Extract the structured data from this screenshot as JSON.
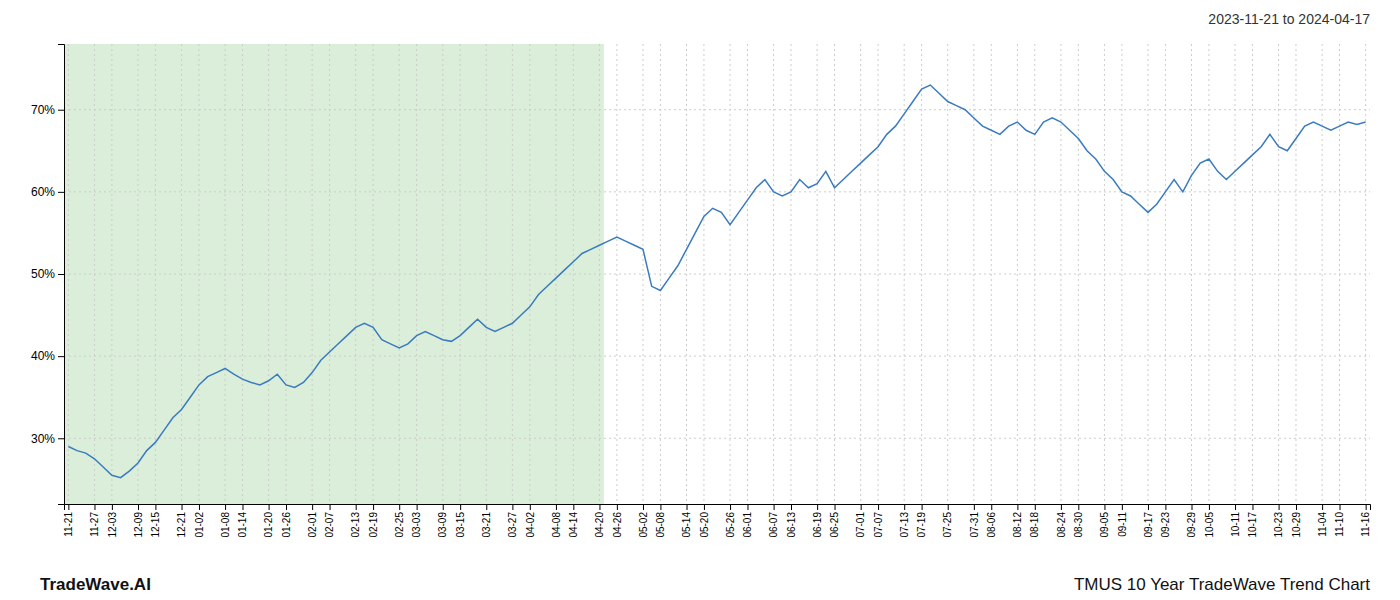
{
  "chart_data": {
    "type": "line",
    "title": "2023-11-21 to 2024-04-17",
    "annotations": [
      "TradeWave.AI",
      "TMUS 10 Year TradeWave Trend Chart"
    ],
    "color": "#3a7bbf",
    "grid": true,
    "highlight": {
      "start": "11-21",
      "end": "04-20",
      "color": "#daeeda"
    },
    "ylim": [
      22,
      78
    ],
    "yticks": [
      {
        "value": 30,
        "label": "30%"
      },
      {
        "value": 40,
        "label": "40%"
      },
      {
        "value": 50,
        "label": "50%"
      },
      {
        "value": 60,
        "label": "60%"
      },
      {
        "value": 70,
        "label": "70%"
      }
    ],
    "categories": [
      "11-21",
      null,
      null,
      "11-27",
      null,
      "12-03",
      null,
      null,
      "12-09",
      null,
      "12-15",
      null,
      null,
      "12-21",
      null,
      "01-02",
      null,
      null,
      "01-08",
      null,
      "01-14",
      null,
      null,
      "01-20",
      null,
      "01-26",
      null,
      null,
      "02-01",
      null,
      "02-07",
      null,
      null,
      "02-13",
      null,
      "02-19",
      null,
      null,
      "02-25",
      null,
      "03-03",
      null,
      null,
      "03-09",
      null,
      "03-15",
      null,
      null,
      "03-21",
      null,
      null,
      "03-27",
      null,
      "04-02",
      null,
      null,
      "04-08",
      null,
      "04-14",
      null,
      null,
      "04-20",
      null,
      "04-26",
      null,
      null,
      "05-02",
      null,
      "05-08",
      null,
      null,
      "05-14",
      null,
      "05-20",
      null,
      null,
      "05-26",
      null,
      "06-01",
      null,
      null,
      "06-07",
      null,
      "06-13",
      null,
      null,
      "06-19",
      null,
      "06-25",
      null,
      null,
      "07-01",
      null,
      "07-07",
      null,
      null,
      "07-13",
      null,
      "07-19",
      null,
      null,
      "07-25",
      null,
      null,
      "07-31",
      null,
      "08-06",
      null,
      null,
      "08-12",
      null,
      "08-18",
      null,
      null,
      "08-24",
      null,
      "08-30",
      null,
      null,
      "09-05",
      null,
      "09-11",
      null,
      null,
      "09-17",
      null,
      "09-23",
      null,
      null,
      "09-29",
      null,
      "10-05",
      null,
      null,
      "10-11",
      null,
      "10-17",
      null,
      null,
      "10-23",
      null,
      "10-29",
      null,
      null,
      "11-04",
      null,
      "11-10",
      null,
      null,
      "11-16"
    ],
    "values": [
      29.0,
      28.5,
      28.2,
      27.5,
      26.5,
      25.5,
      25.2,
      26.0,
      27.0,
      28.5,
      29.5,
      31.0,
      32.5,
      33.5,
      35.0,
      36.5,
      37.5,
      38.0,
      38.5,
      37.8,
      37.2,
      36.8,
      36.5,
      37.0,
      37.8,
      36.5,
      36.2,
      36.8,
      38.0,
      39.5,
      40.5,
      41.5,
      42.5,
      43.5,
      44.0,
      43.5,
      42.0,
      41.5,
      41.0,
      41.5,
      42.5,
      43.0,
      42.5,
      42.0,
      41.8,
      42.5,
      43.5,
      44.5,
      43.5,
      43.0,
      43.5,
      44.0,
      45.0,
      46.0,
      47.5,
      48.5,
      49.5,
      50.5,
      51.5,
      52.5,
      53.0,
      53.5,
      54.0,
      54.5,
      54.0,
      53.5,
      53.0,
      48.5,
      48.0,
      49.5,
      51.0,
      53.0,
      55.0,
      57.0,
      58.0,
      57.5,
      56.0,
      57.5,
      59.0,
      60.5,
      61.5,
      60.0,
      59.5,
      60.0,
      61.5,
      60.5,
      61.0,
      62.5,
      60.5,
      61.5,
      62.5,
      63.5,
      64.5,
      65.5,
      67.0,
      68.0,
      69.5,
      71.0,
      72.5,
      73.0,
      72.0,
      71.0,
      70.5,
      70.0,
      69.0,
      68.0,
      67.5,
      67.0,
      68.0,
      68.5,
      67.5,
      67.0,
      68.5,
      69.0,
      68.5,
      67.5,
      66.5,
      65.0,
      64.0,
      62.5,
      61.5,
      60.0,
      59.5,
      58.5,
      57.5,
      58.5,
      60.0,
      61.5,
      60.0,
      62.0,
      63.5,
      64.0,
      62.5,
      61.5,
      62.5,
      63.5,
      64.5,
      65.5,
      67.0,
      65.5,
      65.0,
      66.5,
      68.0,
      68.5,
      68.0,
      67.5,
      68.0,
      68.5,
      68.2,
      68.5
    ]
  }
}
